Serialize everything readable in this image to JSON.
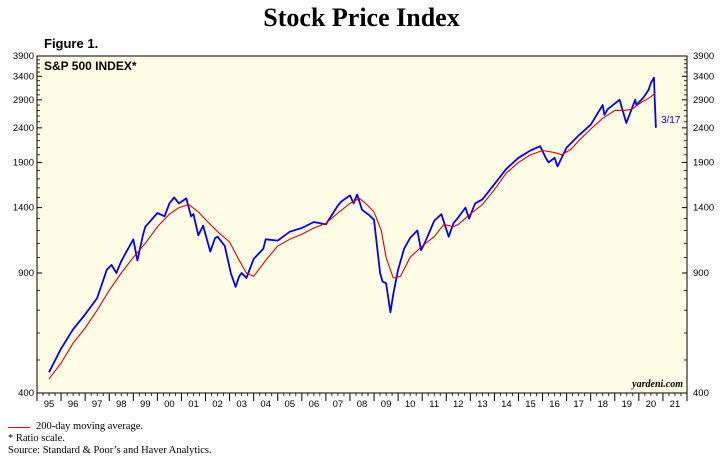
{
  "page": {
    "title": "Stock Price Index",
    "figure_label": "Figure 1.",
    "legend_ma": "200-day moving average.",
    "note_ratio": "*  Ratio scale.",
    "note_source": "Source: Standard & Poor’s and Haver Analytics."
  },
  "chart_data": {
    "type": "line",
    "title": "Stock Price Index",
    "panel_label": "S&P 500 INDEX*",
    "watermark": "yardeni.com",
    "end_annotation": "3/17",
    "y_scale": "log",
    "ylim": [
      400,
      3900
    ],
    "yticks": [
      400,
      900,
      1400,
      1900,
      2400,
      2900,
      3400,
      3900
    ],
    "xlim": [
      1994.5,
      2021.5
    ],
    "xtick_labels": [
      "95",
      "96",
      "97",
      "98",
      "99",
      "00",
      "01",
      "02",
      "03",
      "04",
      "05",
      "06",
      "07",
      "08",
      "09",
      "10",
      "11",
      "12",
      "13",
      "14",
      "15",
      "16",
      "17",
      "18",
      "19",
      "20",
      "21"
    ],
    "colors": {
      "index": "#0000ff",
      "moving_average": "#e00000",
      "plot_background": "#fffde6"
    },
    "series": [
      {
        "name": "S&P 500 INDEX",
        "x": [
          1995.0,
          1995.5,
          1996.0,
          1996.5,
          1997.0,
          1997.4,
          1997.6,
          1997.8,
          1998.0,
          1998.5,
          1998.67,
          1998.9,
          1999.0,
          1999.5,
          1999.8,
          2000.0,
          2000.2,
          2000.4,
          2000.7,
          2000.9,
          2001.0,
          2001.2,
          2001.4,
          2001.7,
          2001.9,
          2002.0,
          2002.3,
          2002.55,
          2002.75,
          2002.9,
          2003.0,
          2003.2,
          2003.5,
          2003.9,
          2004.0,
          2004.5,
          2005.0,
          2005.5,
          2006.0,
          2006.5,
          2007.0,
          2007.15,
          2007.5,
          2007.65,
          2007.8,
          2008.0,
          2008.3,
          2008.5,
          2008.75,
          2008.85,
          2009.0,
          2009.18,
          2009.3,
          2009.5,
          2009.75,
          2010.0,
          2010.3,
          2010.45,
          2010.6,
          2011.0,
          2011.3,
          2011.6,
          2011.8,
          2012.0,
          2012.3,
          2012.45,
          2012.7,
          2013.0,
          2013.5,
          2014.0,
          2014.5,
          2015.0,
          2015.4,
          2015.65,
          2015.75,
          2016.0,
          2016.12,
          2016.5,
          2017.0,
          2017.5,
          2018.0,
          2018.07,
          2018.2,
          2018.7,
          2018.98,
          2019.0,
          2019.35,
          2019.4,
          2019.7,
          2019.9,
          2020.0,
          2020.13,
          2020.16,
          2020.18,
          2020.21
        ],
        "values": [
          460,
          540,
          615,
          680,
          760,
          920,
          950,
          900,
          975,
          1130,
          980,
          1160,
          1230,
          1350,
          1320,
          1440,
          1500,
          1440,
          1490,
          1320,
          1340,
          1160,
          1240,
          1040,
          1140,
          1150,
          1080,
          900,
          820,
          880,
          900,
          870,
          990,
          1060,
          1130,
          1120,
          1190,
          1220,
          1270,
          1250,
          1420,
          1460,
          1520,
          1440,
          1530,
          1380,
          1330,
          1290,
          900,
          850,
          840,
          690,
          780,
          920,
          1060,
          1140,
          1200,
          1050,
          1100,
          1280,
          1340,
          1150,
          1260,
          1310,
          1400,
          1300,
          1440,
          1480,
          1640,
          1820,
          1960,
          2060,
          2120,
          1950,
          1900,
          1960,
          1850,
          2100,
          2280,
          2450,
          2800,
          2620,
          2720,
          2900,
          2480,
          2500,
          2900,
          2800,
          2950,
          3100,
          3250,
          3370,
          2900,
          2700,
          2400
        ]
      },
      {
        "name": "200-day moving average",
        "x": [
          1995.0,
          1995.5,
          1996.0,
          1996.5,
          1997.0,
          1997.5,
          1998.0,
          1998.5,
          1999.0,
          1999.5,
          2000.0,
          2000.4,
          2000.8,
          2001.2,
          2001.6,
          2002.0,
          2002.5,
          2002.9,
          2003.2,
          2003.5,
          2004.0,
          2004.5,
          2005.0,
          2005.5,
          2006.0,
          2006.5,
          2007.0,
          2007.5,
          2007.9,
          2008.2,
          2008.5,
          2008.8,
          2009.0,
          2009.3,
          2009.6,
          2010.0,
          2010.5,
          2011.0,
          2011.4,
          2011.8,
          2012.0,
          2012.5,
          2013.0,
          2013.5,
          2014.0,
          2014.5,
          2015.0,
          2015.5,
          2016.0,
          2016.3,
          2016.7,
          2017.0,
          2017.5,
          2018.0,
          2018.5,
          2018.9,
          2019.2,
          2019.6,
          2020.0,
          2020.2
        ],
        "values": [
          440,
          490,
          560,
          620,
          700,
          800,
          900,
          1000,
          1100,
          1230,
          1340,
          1400,
          1430,
          1360,
          1270,
          1190,
          1110,
          980,
          900,
          880,
          980,
          1080,
          1130,
          1170,
          1220,
          1260,
          1350,
          1440,
          1490,
          1430,
          1360,
          1200,
          1000,
          870,
          880,
          1000,
          1080,
          1150,
          1250,
          1230,
          1250,
          1340,
          1430,
          1580,
          1770,
          1900,
          2000,
          2060,
          2030,
          2000,
          2080,
          2200,
          2380,
          2560,
          2700,
          2700,
          2720,
          2850,
          2960,
          3050
        ]
      }
    ]
  }
}
